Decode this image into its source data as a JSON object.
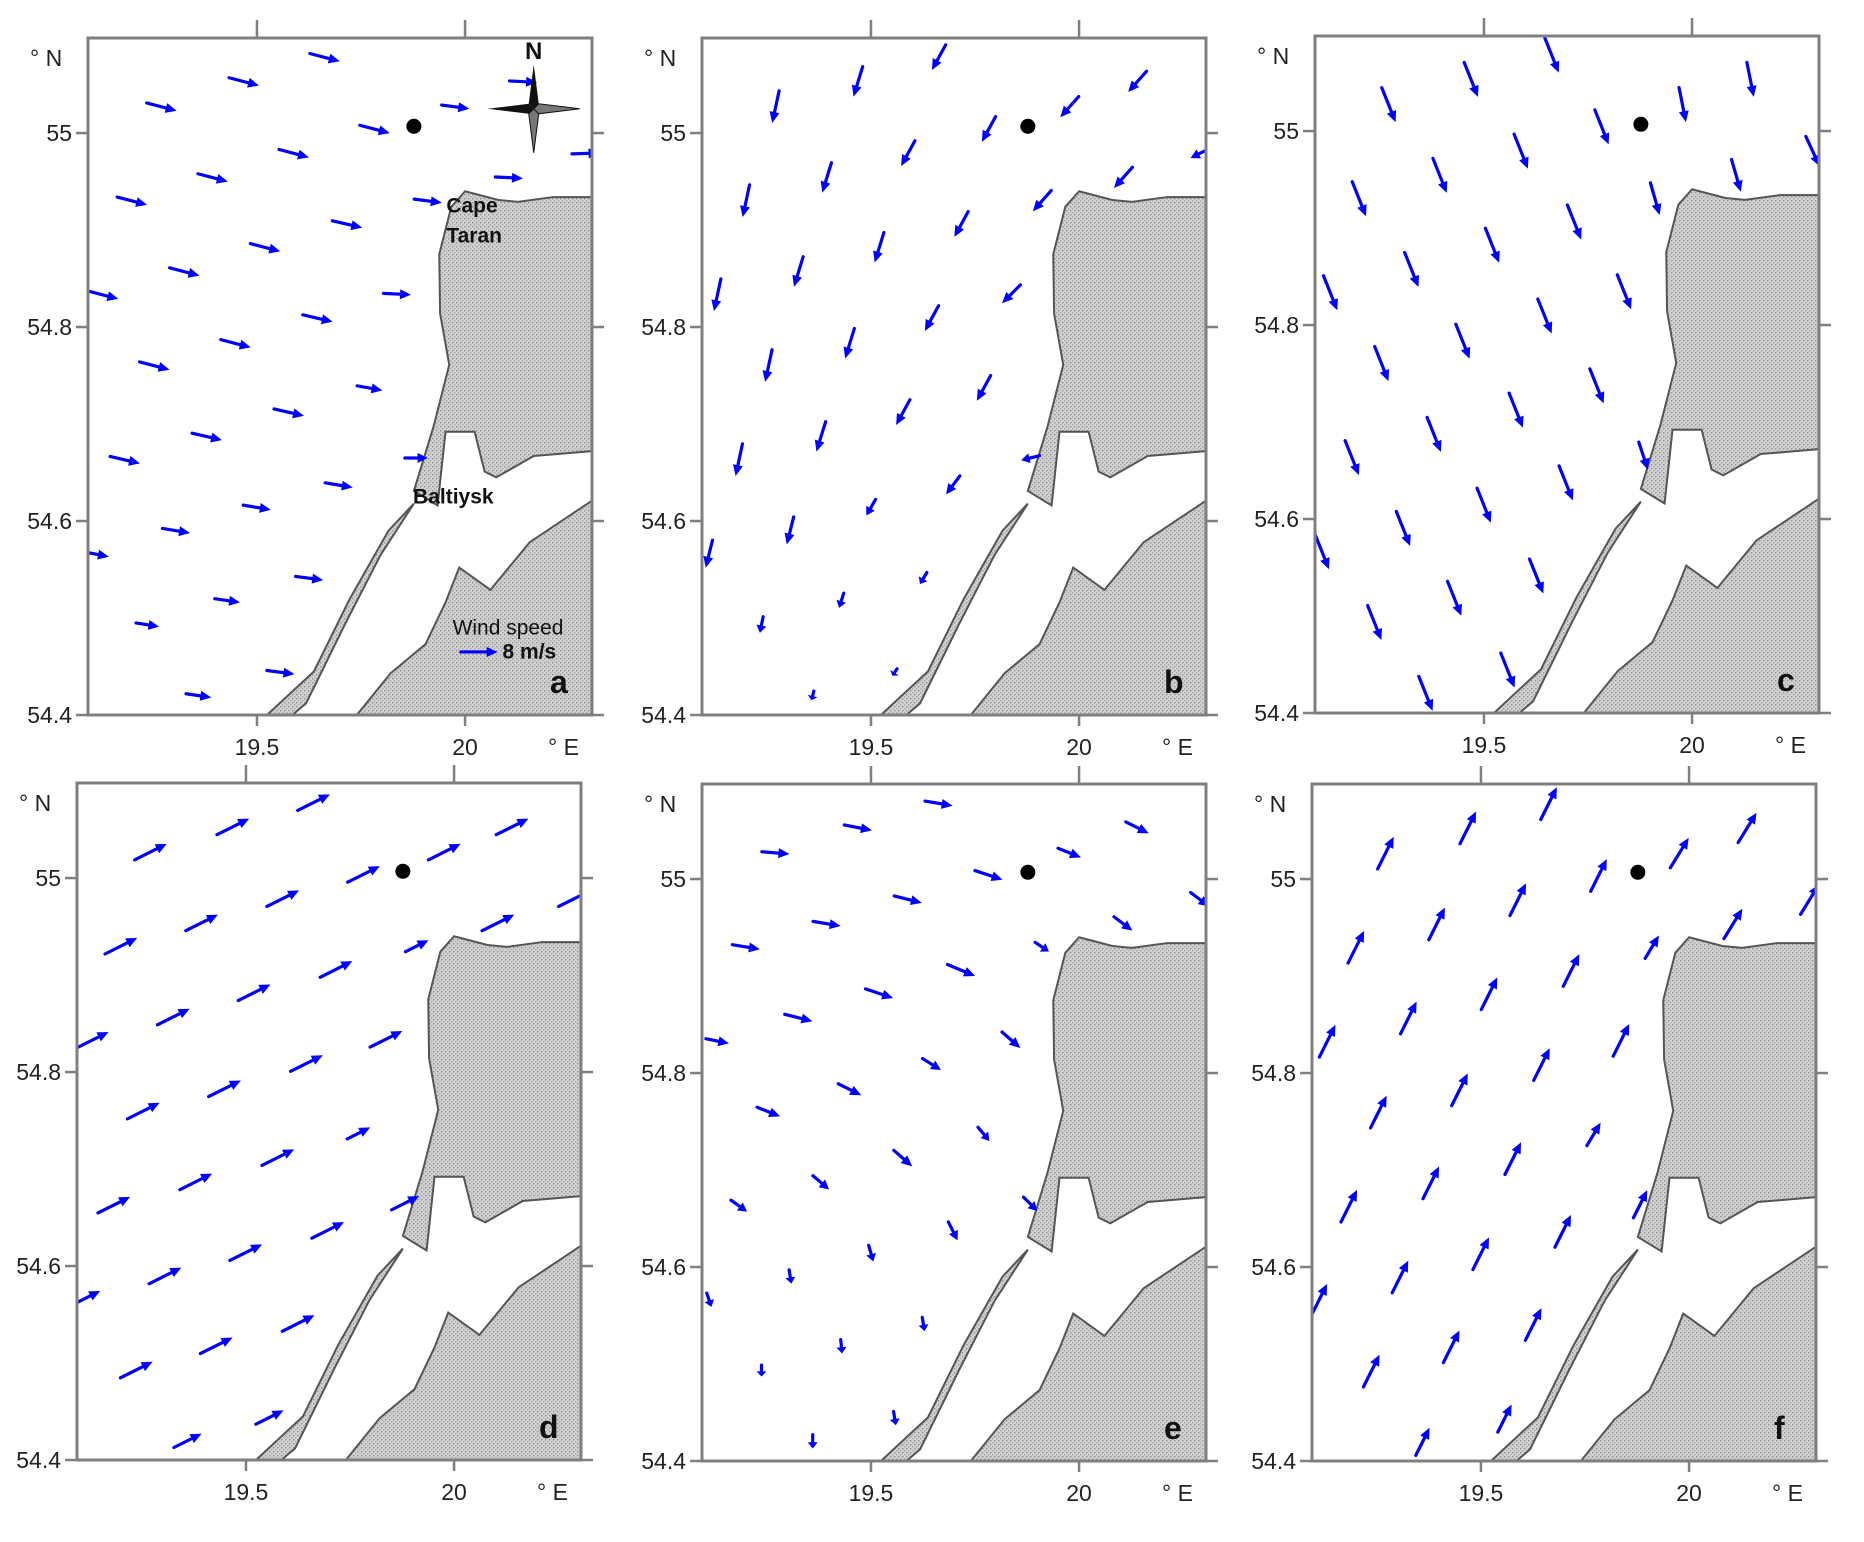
{
  "map": {
    "lon_range": [
      19.094,
      20.305
    ],
    "lat_range": [
      54.4,
      55.098
    ],
    "lon_ticks": [
      19.5,
      20
    ],
    "lon_tick_labels": [
      "19.5",
      "20"
    ],
    "lat_ticks": [
      55,
      54.8,
      54.6,
      54.4
    ],
    "lat_tick_labels": [
      "55",
      "54.8",
      "54.6",
      "54.4"
    ],
    "lat_unit": "° N",
    "lon_unit": "° E",
    "colors": {
      "arrow": "#0000ff",
      "land": "#cfcfcf",
      "land_stipple": "#8f8f8f",
      "coast": "#555555",
      "frame": "#7f7f7f",
      "marker": "#000000"
    },
    "land": [
      {
        "name": "sambia-peninsula",
        "coords": [
          [
            20.0,
            54.94
          ],
          [
            19.967,
            54.924
          ],
          [
            19.938,
            54.875
          ],
          [
            19.94,
            54.814
          ],
          [
            19.962,
            54.761
          ],
          [
            19.924,
            54.697
          ],
          [
            19.877,
            54.631
          ],
          [
            19.934,
            54.616
          ],
          [
            19.953,
            54.692
          ],
          [
            20.023,
            54.692
          ],
          [
            20.047,
            54.651
          ],
          [
            20.075,
            54.645
          ],
          [
            20.165,
            54.667
          ],
          [
            20.305,
            54.672
          ],
          [
            20.305,
            54.934
          ],
          [
            20.212,
            54.934
          ],
          [
            20.127,
            54.929
          ],
          [
            20.08,
            54.931
          ]
        ]
      },
      {
        "name": "vistula-spit",
        "coords": [
          [
            19.877,
            54.618
          ],
          [
            19.816,
            54.59
          ],
          [
            19.722,
            54.519
          ],
          [
            19.637,
            54.445
          ],
          [
            19.524,
            54.4
          ],
          [
            19.585,
            54.4
          ],
          [
            19.618,
            54.412
          ],
          [
            19.712,
            54.494
          ],
          [
            19.797,
            54.565
          ]
        ]
      },
      {
        "name": "southern-shore",
        "coords": [
          [
            19.74,
            54.4
          ],
          [
            19.821,
            54.443
          ],
          [
            19.905,
            54.473
          ],
          [
            19.953,
            54.516
          ],
          [
            19.986,
            54.552
          ],
          [
            20.061,
            54.529
          ],
          [
            20.155,
            54.578
          ],
          [
            20.305,
            54.621
          ],
          [
            20.305,
            54.4
          ]
        ]
      }
    ],
    "station": [
      19.877,
      55.007
    ]
  },
  "panel_a_annotations": {
    "cape": "Cape\nTaran",
    "cape_line1": "Cape",
    "cape_line2": "Taran",
    "baltiysk": "Baltiysk",
    "legend_title": "Wind speed",
    "legend_value": "8 m/s",
    "legend_speed": 8,
    "compass_label": "N"
  },
  "arrow_grid": [
    [
      19.663,
      55.078
    ],
    [
      19.469,
      55.053
    ],
    [
      19.271,
      55.027
    ],
    [
      19.783,
      55.004
    ],
    [
      19.589,
      54.979
    ],
    [
      19.394,
      54.954
    ],
    [
      19.2,
      54.93
    ],
    [
      19.717,
      54.906
    ],
    [
      19.52,
      54.882
    ],
    [
      19.326,
      54.857
    ],
    [
      19.131,
      54.833
    ],
    [
      19.646,
      54.809
    ],
    [
      19.449,
      54.783
    ],
    [
      19.254,
      54.76
    ],
    [
      19.771,
      54.737
    ],
    [
      19.577,
      54.712
    ],
    [
      19.38,
      54.687
    ],
    [
      19.183,
      54.663
    ],
    [
      19.697,
      54.637
    ],
    [
      19.5,
      54.614
    ],
    [
      19.306,
      54.59
    ],
    [
      19.111,
      54.566
    ],
    [
      19.626,
      54.541
    ],
    [
      19.429,
      54.518
    ],
    [
      19.237,
      54.493
    ],
    [
      19.557,
      54.444
    ],
    [
      19.36,
      54.42
    ],
    [
      19.977,
      55.027
    ],
    [
      20.14,
      55.053
    ],
    [
      20.29,
      54.979
    ],
    [
      20.106,
      54.954
    ],
    [
      19.911,
      54.93
    ],
    [
      19.837,
      54.834
    ],
    [
      19.883,
      54.665
    ]
  ],
  "chart_data": [
    {
      "type": "quiver",
      "panel_label": "a",
      "units": "m/s",
      "vectors": [
        [
          6.5,
          -1.7
        ],
        [
          6.5,
          -1.7
        ],
        [
          6.5,
          -1.7
        ],
        [
          6.5,
          -1.7
        ],
        [
          6.5,
          -1.7
        ],
        [
          6.5,
          -1.7
        ],
        [
          6.5,
          -1.7
        ],
        [
          6.5,
          -1.5
        ],
        [
          6.5,
          -1.7
        ],
        [
          6.5,
          -1.7
        ],
        [
          6.5,
          -1.7
        ],
        [
          6.5,
          -1.5
        ],
        [
          6.5,
          -1.7
        ],
        [
          6.5,
          -1.7
        ],
        [
          5.5,
          -1.0
        ],
        [
          6.5,
          -1.5
        ],
        [
          6.5,
          -1.5
        ],
        [
          6.5,
          -1.5
        ],
        [
          6,
          -1.0
        ],
        [
          6,
          -1.0
        ],
        [
          6,
          -1.0
        ],
        [
          6,
          -1.2
        ],
        [
          6,
          -0.8
        ],
        [
          5.5,
          -0.8
        ],
        [
          5,
          -0.8
        ],
        [
          6,
          -0.8
        ],
        [
          5.5,
          -0.8
        ],
        [
          6,
          -0.8
        ],
        [
          6,
          -0.3
        ],
        [
          6,
          0.2
        ],
        [
          6,
          -0.3
        ],
        [
          6,
          -0.8
        ],
        [
          6,
          -0.3
        ],
        [
          5,
          0
        ]
      ]
    },
    {
      "type": "quiver",
      "panel_label": "b",
      "units": "m/s",
      "vectors": [
        [
          -3,
          -5.5
        ],
        [
          -2,
          -6.5
        ],
        [
          -1.5,
          -7
        ],
        [
          -3,
          -5.5
        ],
        [
          -3,
          -5.5
        ],
        [
          -2,
          -6.5
        ],
        [
          -1.5,
          -7
        ],
        [
          -3,
          -5.5
        ],
        [
          -2,
          -6.5
        ],
        [
          -2,
          -6.5
        ],
        [
          -1.5,
          -7
        ],
        [
          -3,
          -5.5
        ],
        [
          -2,
          -6.5
        ],
        [
          -1.5,
          -7
        ],
        [
          -3,
          -5.5
        ],
        [
          -3,
          -5.5
        ],
        [
          -2,
          -6.5
        ],
        [
          -1.5,
          -7
        ],
        [
          -3,
          -4
        ],
        [
          -2,
          -3.5
        ],
        [
          -1.5,
          -6
        ],
        [
          -1.5,
          -6
        ],
        [
          -1.5,
          -2.5
        ],
        [
          -1,
          -3.2
        ],
        [
          -0.7,
          -3.5
        ],
        [
          -1,
          -1.5
        ],
        [
          -0.5,
          -2
        ],
        [
          -4,
          -4.5
        ],
        [
          -4,
          -4.5
        ],
        [
          -4,
          -2
        ],
        [
          -4,
          -4.5
        ],
        [
          -4,
          -4.5
        ],
        [
          -4,
          -4
        ],
        [
          -4,
          -1
        ]
      ]
    },
    {
      "type": "quiver",
      "panel_label": "c",
      "units": "m/s",
      "vectors": [
        [
          3,
          -7.5
        ],
        [
          3,
          -7.5
        ],
        [
          3,
          -7.5
        ],
        [
          3,
          -7.5
        ],
        [
          3,
          -7.5
        ],
        [
          3,
          -7.5
        ],
        [
          3,
          -7.5
        ],
        [
          3,
          -7.5
        ],
        [
          3,
          -7.5
        ],
        [
          3,
          -7.5
        ],
        [
          3,
          -7.5
        ],
        [
          3,
          -7.5
        ],
        [
          3,
          -7.5
        ],
        [
          3,
          -7.5
        ],
        [
          3,
          -7.5
        ],
        [
          3,
          -7.5
        ],
        [
          3,
          -7.5
        ],
        [
          3,
          -7.5
        ],
        [
          3,
          -7.5
        ],
        [
          3,
          -7.5
        ],
        [
          3,
          -7.5
        ],
        [
          3,
          -7.5
        ],
        [
          3,
          -7.5
        ],
        [
          3,
          -7.5
        ],
        [
          3,
          -7.5
        ],
        [
          3,
          -7.5
        ],
        [
          3,
          -7.5
        ],
        [
          1.5,
          -7.5
        ],
        [
          1.5,
          -7.5
        ],
        [
          3,
          -6.5
        ],
        [
          2,
          -7
        ],
        [
          2,
          -7
        ],
        [
          3,
          -7.5
        ],
        [
          2,
          -6
        ]
      ]
    },
    {
      "type": "quiver",
      "panel_label": "d",
      "units": "m/s",
      "vectors": [
        [
          7,
          3.5
        ],
        [
          7,
          3.5
        ],
        [
          7,
          3.5
        ],
        [
          7,
          3.5
        ],
        [
          7,
          3.5
        ],
        [
          7,
          3.5
        ],
        [
          7,
          3.5
        ],
        [
          7,
          3.5
        ],
        [
          7,
          3.5
        ],
        [
          7,
          3.5
        ],
        [
          7,
          3.5
        ],
        [
          7,
          3.5
        ],
        [
          7,
          3.5
        ],
        [
          7,
          3.5
        ],
        [
          5,
          2.5
        ],
        [
          7,
          3.5
        ],
        [
          7,
          3.5
        ],
        [
          7,
          3.5
        ],
        [
          7,
          3.5
        ],
        [
          7,
          3.5
        ],
        [
          7,
          3.5
        ],
        [
          7,
          3.5
        ],
        [
          7,
          3.5
        ],
        [
          7,
          3.5
        ],
        [
          7,
          3.5
        ],
        [
          6,
          3
        ],
        [
          6,
          3
        ],
        [
          7,
          3.5
        ],
        [
          7,
          3.5
        ],
        [
          7,
          3.5
        ],
        [
          7,
          3.5
        ],
        [
          5,
          2.5
        ],
        [
          7,
          3.5
        ],
        [
          6,
          3
        ]
      ]
    },
    {
      "type": "quiver",
      "panel_label": "e",
      "units": "m/s",
      "vectors": [
        [
          6,
          -1
        ],
        [
          6,
          -1.2
        ],
        [
          6,
          -0.5
        ],
        [
          6,
          -2
        ],
        [
          6,
          -1.5
        ],
        [
          6,
          -1
        ],
        [
          6,
          -1
        ],
        [
          6,
          -2.5
        ],
        [
          6,
          -2
        ],
        [
          6,
          -1.5
        ],
        [
          5,
          -1
        ],
        [
          4,
          -2.5
        ],
        [
          5,
          -2.5
        ],
        [
          5,
          -2
        ],
        [
          2.5,
          -3
        ],
        [
          4,
          -3.5
        ],
        [
          3.5,
          -3
        ],
        [
          3.5,
          -2.5
        ],
        [
          2,
          -4
        ],
        [
          1,
          -3.5
        ],
        [
          0.5,
          -3
        ],
        [
          1,
          -3
        ],
        [
          0.5,
          -3
        ],
        [
          0.3,
          -3
        ],
        [
          0,
          -2.5
        ],
        [
          0.5,
          -3
        ],
        [
          0,
          -3
        ],
        [
          5,
          -2
        ],
        [
          5,
          -2.5
        ],
        [
          4,
          -3
        ],
        [
          4,
          -3
        ],
        [
          3,
          -2
        ],
        [
          4,
          -3.5
        ],
        [
          3,
          -3
        ]
      ]
    },
    {
      "type": "quiver",
      "panel_label": "f",
      "units": "m/s",
      "vectors": [
        [
          3.5,
          7
        ],
        [
          3.5,
          7
        ],
        [
          3.5,
          7
        ],
        [
          3.5,
          7
        ],
        [
          3.5,
          7
        ],
        [
          3.5,
          7
        ],
        [
          3.5,
          7
        ],
        [
          3.5,
          7
        ],
        [
          3.5,
          7
        ],
        [
          3.5,
          7
        ],
        [
          3.5,
          7
        ],
        [
          3.5,
          7
        ],
        [
          3.5,
          7
        ],
        [
          3.5,
          7
        ],
        [
          3,
          5
        ],
        [
          3.5,
          7
        ],
        [
          3.5,
          7
        ],
        [
          3.5,
          7
        ],
        [
          3.5,
          7
        ],
        [
          3.5,
          7
        ],
        [
          3.5,
          7
        ],
        [
          3.5,
          7
        ],
        [
          3.5,
          7
        ],
        [
          3.5,
          7
        ],
        [
          3.5,
          7
        ],
        [
          3,
          6
        ],
        [
          3,
          6
        ],
        [
          4,
          6.5
        ],
        [
          4,
          6.5
        ],
        [
          4,
          6.5
        ],
        [
          4,
          6.5
        ],
        [
          3,
          5
        ],
        [
          3.5,
          7
        ],
        [
          3,
          6
        ]
      ]
    }
  ]
}
